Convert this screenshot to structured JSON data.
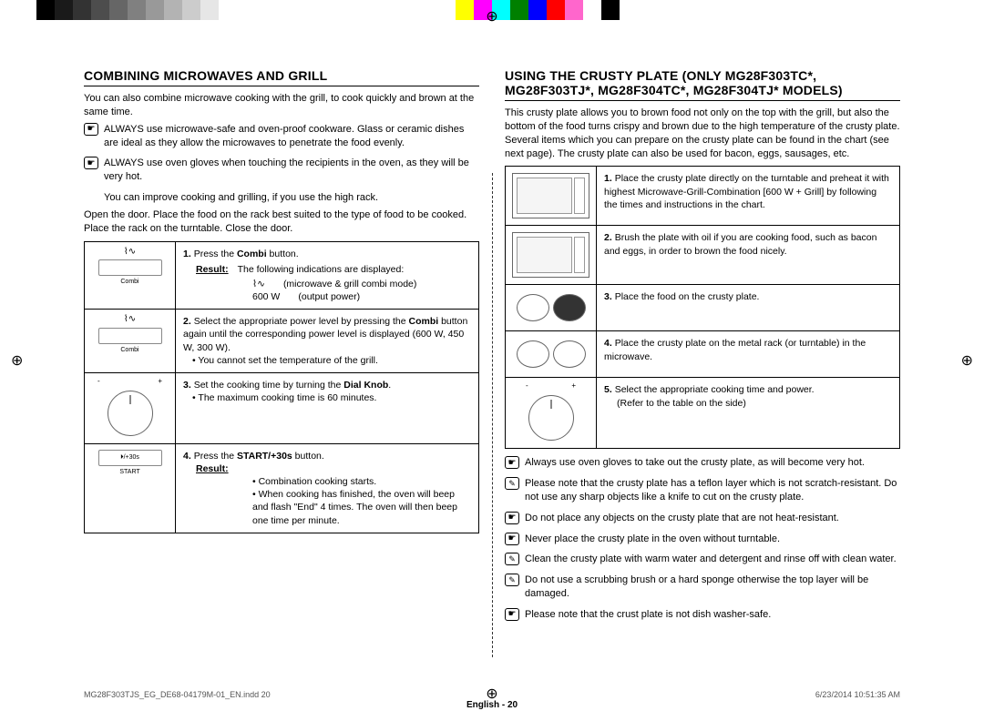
{
  "colorbar": [
    "#000000",
    "#1a1a1a",
    "#333333",
    "#4d4d4d",
    "#666666",
    "#808080",
    "#999999",
    "#b3b3b3",
    "#cccccc",
    "#e6e6e6",
    "#ffffff",
    "",
    "",
    "",
    "",
    "",
    "",
    "",
    "",
    "",
    "",
    "",
    "",
    "#ffff00",
    "#ff00ff",
    "#00ffff",
    "#008000",
    "#0000ff",
    "#ff0000",
    "#ff66cc",
    "#ffffff",
    "#000000"
  ],
  "left": {
    "title": "COMBINING MICROWAVES AND GRILL",
    "intro": "You can also combine microwave cooking with the grill, to cook quickly and brown at the same time.",
    "tips": [
      "ALWAYS use microwave-safe and oven-proof cookware. Glass or ceramic dishes are ideal as they allow the microwaves to penetrate the food evenly.",
      "ALWAYS use oven gloves when touching the recipients in the oven, as they will be very hot."
    ],
    "note1": "You can improve cooking and grilling, if you use the high rack.",
    "note2": "Open the door. Place the food on the rack best suited to the type of food to be cooked. Place the rack on the turntable. Close the door.",
    "steps": [
      {
        "n": "1.",
        "text": "Press the ",
        "bold": "Combi",
        "text2": " button.",
        "btn": "Combi",
        "result_label": "Result:",
        "result": "The following indications are displayed:",
        "lines": [
          {
            "a": "⌇∿",
            "b": "(microwave & grill combi mode)"
          },
          {
            "a": "600 W",
            "b": "(output power)"
          }
        ]
      },
      {
        "n": "2.",
        "text": "Select the appropriate power level by pressing the ",
        "bold": "Combi",
        "text2": " button again until the corresponding power level is displayed (600 W, 450 W, 300 W).",
        "btn": "Combi",
        "bullets": [
          "You cannot set the temperature of the grill."
        ]
      },
      {
        "n": "3.",
        "text": "Set the cooking time by turning the ",
        "bold": "Dial Knob",
        "text2": ".",
        "knob": true,
        "bullets": [
          "The maximum cooking time is 60 minutes."
        ]
      },
      {
        "n": "4.",
        "text": "Press the ",
        "bold": "START/+30s",
        "text2": " button.",
        "btn": "⏵/+30s",
        "btn2": "START",
        "result_label": "Result:",
        "bullets": [
          "Combination cooking starts.",
          "When cooking has finished, the oven will beep and flash \"End\" 4 times. The oven will then beep one time per minute."
        ]
      }
    ]
  },
  "right": {
    "title": "USING THE CRUSTY PLATE (ONLY MG28F303TC*, MG28F303TJ*, MG28F304TC*, MG28F304TJ* MODELS)",
    "intro": "This crusty plate allows you to brown food not only on the top with the grill, but also the bottom of the food turns crispy and brown due to the high temperature of the crusty plate. Several items which you can prepare on the crusty plate can be found in the chart (see next page). The crusty plate can also be used for bacon, eggs, sausages, etc.",
    "steps": [
      {
        "n": "1.",
        "text": "Place the crusty plate directly on the turntable and preheat it with highest Microwave-Grill-Combination [600 W + Grill] by following the times and instructions in the chart.",
        "img": "mw"
      },
      {
        "n": "2.",
        "text": "Brush the plate with oil if you are cooking food, such as bacon and eggs, in order to brown the food nicely.",
        "img": "mw"
      },
      {
        "n": "3.",
        "text": "Place the food on the crusty plate.",
        "img": "plates"
      },
      {
        "n": "4.",
        "text": "Place the crusty plate on the metal rack (or turntable) in the microwave.",
        "img": "plates"
      },
      {
        "n": "5.",
        "text": "Select the appropriate cooking time and power.",
        "sub": "(Refer to the table on the side)",
        "img": "knob"
      }
    ],
    "notes": [
      {
        "ic": "hand",
        "t": "Always use oven gloves to take out the crusty plate, as will become very hot."
      },
      {
        "ic": "note",
        "t": "Please note that the crusty plate has a teflon layer which is not scratch-resistant. Do not use any sharp objects like a knife to cut on the crusty plate."
      },
      {
        "ic": "hand",
        "t": "Do not place any objects on the crusty plate that are not heat-resistant."
      },
      {
        "ic": "hand",
        "t": "Never place the crusty plate in the oven without turntable."
      },
      {
        "ic": "note",
        "t": "Clean the crusty plate with warm water and detergent and rinse off with clean water."
      },
      {
        "ic": "note",
        "t": "Do not use a scrubbing brush or a hard sponge otherwise the top layer will be damaged."
      },
      {
        "ic": "hand",
        "t": "Please note that the crust plate is not dish washer-safe."
      }
    ]
  },
  "footer": "English - 20",
  "footnote_l": "MG28F303TJS_EG_DE68-04179M-01_EN.indd   20",
  "footnote_r": "6/23/2014   10:51:35 AM"
}
